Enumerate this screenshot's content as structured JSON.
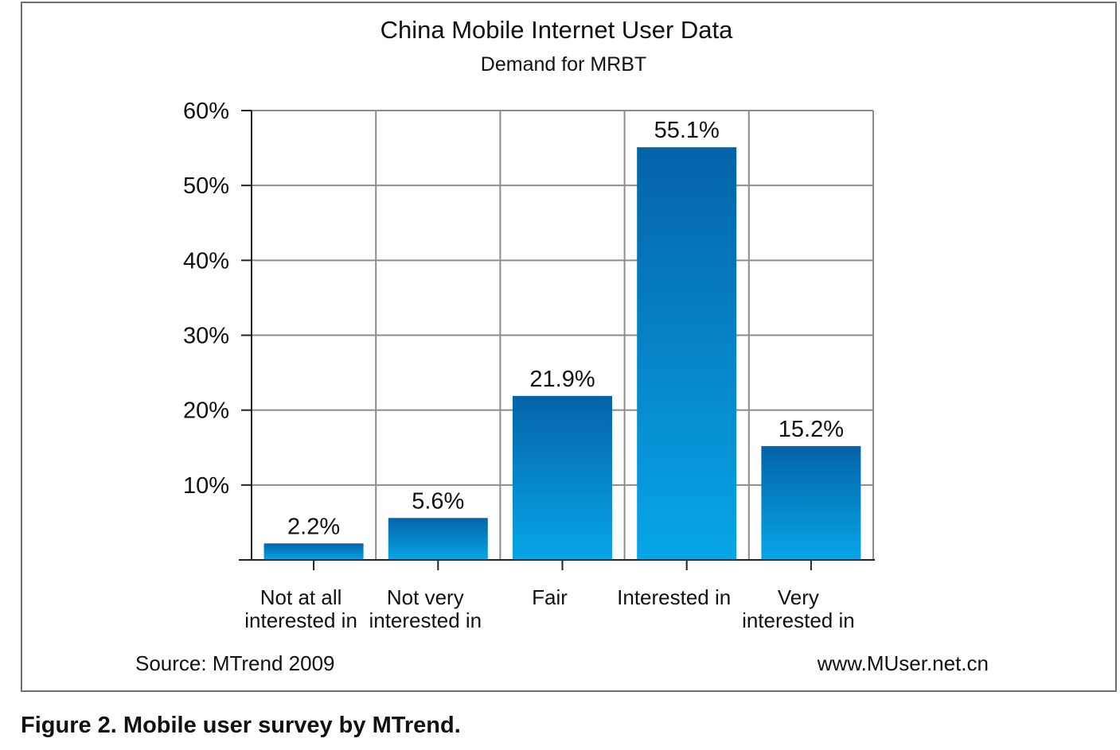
{
  "chart_data": {
    "type": "bar",
    "title": "China Mobile Internet User Data",
    "subtitle": "Demand for MRBT",
    "categories": [
      [
        "Not at all",
        "interested in"
      ],
      [
        "Not very",
        "interested in"
      ],
      [
        "Fair"
      ],
      [
        "Interested in"
      ],
      [
        "Very",
        "interested in"
      ]
    ],
    "values": [
      2.2,
      5.6,
      21.9,
      55.1,
      15.2
    ],
    "data_labels": [
      "2.2%",
      "5.6%",
      "21.9%",
      "55.1%",
      "15.2%"
    ],
    "y_ticks": [
      {
        "value": 10,
        "label": "10%"
      },
      {
        "value": 20,
        "label": "20%"
      },
      {
        "value": 30,
        "label": "30%"
      },
      {
        "value": 40,
        "label": "40%"
      },
      {
        "value": 50,
        "label": "50%"
      },
      {
        "value": 60,
        "label": "60%"
      }
    ],
    "ylim": [
      0,
      60
    ],
    "grid": true,
    "bar_color_top": "#0563a8",
    "bar_color_bottom": "#06a6e8",
    "grid_color": "#8c8c8c"
  },
  "footer": {
    "source": "Source: MTrend 2009",
    "website": "www.MUser.net.cn"
  },
  "caption": "Figure 2. Mobile user survey by MTrend."
}
